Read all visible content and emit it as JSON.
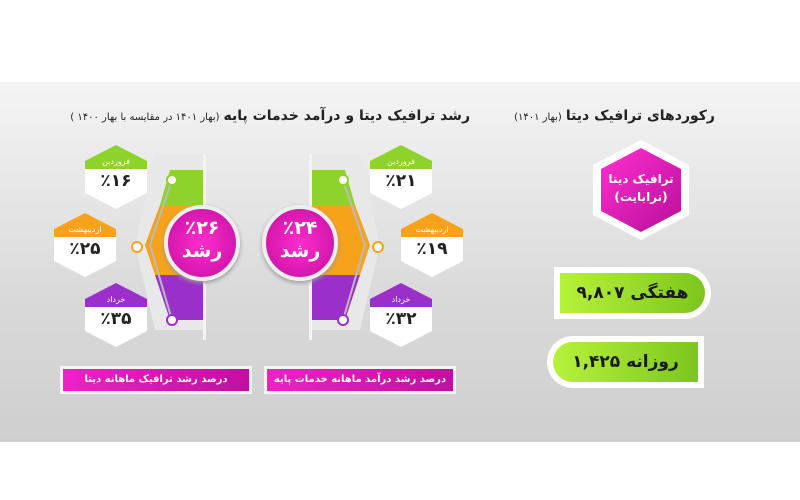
{
  "left_section": {
    "title": "رشد ترافیک دیتا و درآمد خدمات پایه",
    "subtitle": "(بهار ۱۴۰۱ در مقایسه با بهار ۱۴۰۰ )",
    "data_traffic": {
      "growth_value": "٪۲۶",
      "growth_label": "رشد",
      "months": [
        {
          "label": "فروردین",
          "value": "٪۱۶",
          "color": "#8ed22c"
        },
        {
          "label": "اردیبهشت",
          "value": "٪۲۵",
          "color": "#f7a21b"
        },
        {
          "label": "خرداد",
          "value": "٪۳۵",
          "color": "#9b2fc9"
        }
      ],
      "banner": "درصد رشد ترافیک ماهانه دیتا"
    },
    "base_services": {
      "growth_value": "٪۲۴",
      "growth_label": "رشد",
      "months": [
        {
          "label": "فروردین",
          "value": "٪۲۱",
          "color": "#8ed22c"
        },
        {
          "label": "اردیبهشت",
          "value": "٪۱۹",
          "color": "#f7a21b"
        },
        {
          "label": "خرداد",
          "value": "٪۳۲",
          "color": "#9b2fc9"
        }
      ],
      "banner": "درصد رشد درآمد ماهانه خدمات پایه"
    }
  },
  "right_section": {
    "title": "رکوردهای ترافیک دیتا",
    "subtitle": "(بهار ۱۴۰۱)",
    "hex_line1": "ترافیک دیتا",
    "hex_line2": "(ترابایت)",
    "weekly": "هفتگی ۹,۸۰۷",
    "daily": "روزانه ۱,۴۲۵"
  },
  "colors": {
    "magenta": "#e61cc0",
    "green": "#8ed22c",
    "orange": "#f7a21b",
    "purple": "#9b2fc9"
  }
}
